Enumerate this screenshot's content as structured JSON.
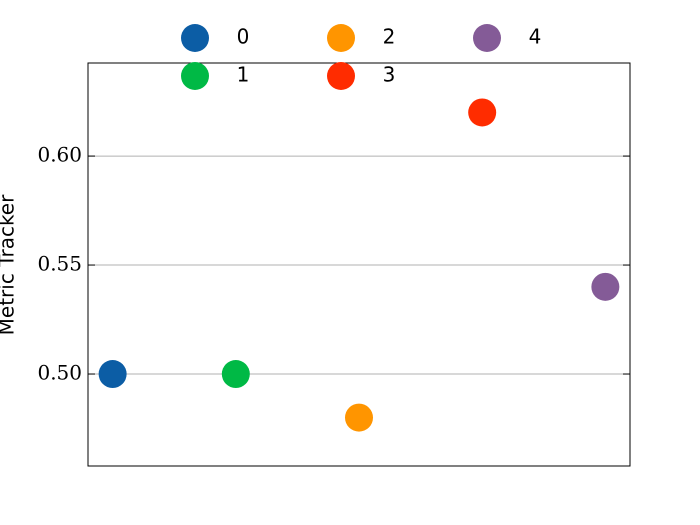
{
  "chart_data": {
    "type": "scatter",
    "y_label": "Metric Tracker",
    "series": [
      {
        "name": "0",
        "color": "#0c5da5",
        "x": [
          0
        ],
        "values": [
          0.5
        ]
      },
      {
        "name": "1",
        "color": "#00b945",
        "x": [
          1
        ],
        "values": [
          0.5
        ]
      },
      {
        "name": "2",
        "color": "#ff9500",
        "x": [
          2
        ],
        "values": [
          0.48
        ]
      },
      {
        "name": "3",
        "color": "#ff2c00",
        "x": [
          3
        ],
        "values": [
          0.62
        ]
      },
      {
        "name": "4",
        "color": "#845b97",
        "x": [
          4
        ],
        "values": [
          0.54
        ]
      }
    ],
    "xlim": [
      -0.2,
      4.2
    ],
    "ylim": [
      0.4578,
      0.6427
    ],
    "yticks": [
      {
        "value": 0.5,
        "label": "0.50"
      },
      {
        "value": 0.55,
        "label": "0.55"
      },
      {
        "value": 0.6,
        "label": "0.60"
      }
    ],
    "grid": true,
    "legend": "top"
  }
}
